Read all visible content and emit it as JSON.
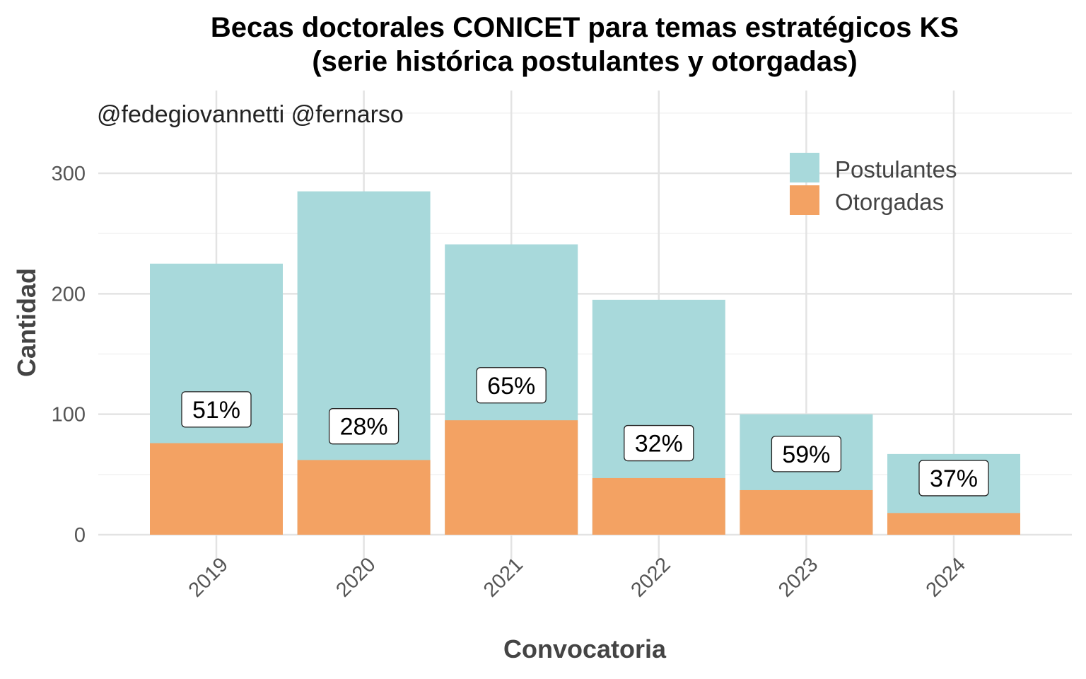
{
  "chart_data": {
    "type": "bar",
    "stacked": "overlay",
    "title": "Becas doctorales CONICET para temas estratégicos KS",
    "subtitle": "(serie histórica postulantes y otorgadas)",
    "annotation": "@fedegiovannetti @fernarso",
    "xlabel": "Convocatoria",
    "ylabel": "Cantidad",
    "categories": [
      "2019",
      "2020",
      "2021",
      "2022",
      "2023",
      "2024"
    ],
    "series": [
      {
        "name": "Postulantes",
        "color": "#a8d9db",
        "values": [
          225,
          285,
          241,
          195,
          100,
          67
        ]
      },
      {
        "name": "Otorgadas",
        "color": "#f3a263",
        "values": [
          76,
          62,
          95,
          47,
          37,
          18
        ]
      }
    ],
    "percent_labels": [
      "51%",
      "28%",
      "65%",
      "32%",
      "59%",
      "37%"
    ],
    "percent_label_y": [
      104,
      90,
      124,
      76,
      67,
      47
    ],
    "yticks": [
      0,
      100,
      200,
      300
    ],
    "ylim": [
      -15,
      370
    ],
    "grid": true,
    "legend_position": "top-right"
  }
}
